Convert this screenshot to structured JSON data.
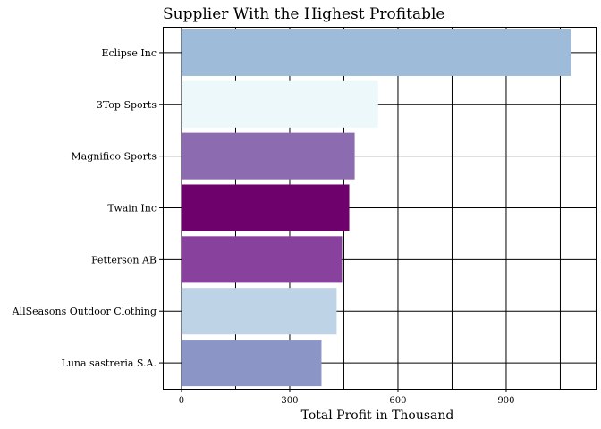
{
  "chart_data": {
    "type": "bar",
    "orientation": "horizontal",
    "title": "Supplier With the Highest Profitable",
    "xlabel": "Total Profit in Thousand",
    "ylabel": "",
    "xlim": [
      -52,
      1148
    ],
    "xticks": [
      0,
      300,
      600,
      900
    ],
    "xtick_labels": [
      "0",
      "300",
      "600",
      "900"
    ],
    "grid": true,
    "categories": [
      "Eclipse Inc",
      "3Top Sports",
      "Magnifico Sports",
      "Twain Inc",
      "Petterson AB",
      "AllSeasons Outdoor Clothing",
      "Luna sastreria S.A."
    ],
    "values": [
      1080,
      545,
      480,
      465,
      445,
      430,
      388
    ],
    "colors": [
      "#9ebcda",
      "#edf8fb",
      "#8c6bb1",
      "#6e016b",
      "#88419d",
      "#bfd3e6",
      "#8c96c6"
    ]
  }
}
